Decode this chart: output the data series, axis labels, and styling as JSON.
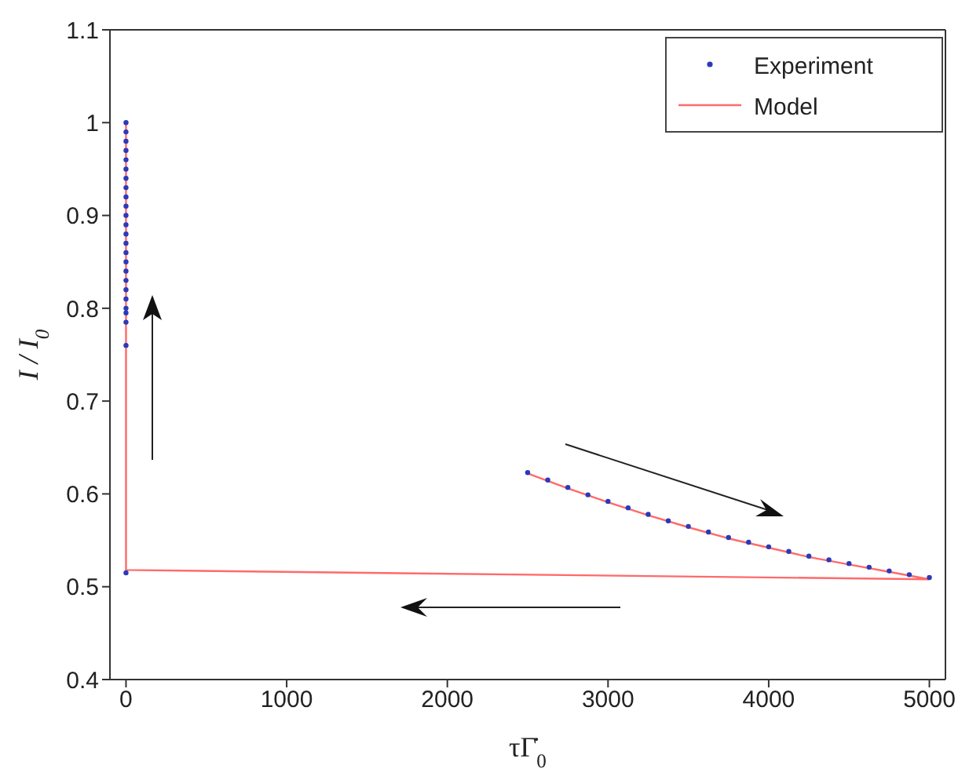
{
  "chart_data": {
    "type": "scatter",
    "xlabel": "τΓ̇$_{0}$",
    "ylabel": "I / I$_{0}$",
    "xlim": [
      -100,
      5100
    ],
    "xticks": [
      0,
      1000,
      2000,
      3000,
      4000,
      5000
    ],
    "ylim": [
      0.4,
      1.1
    ],
    "yticks": [
      0.4,
      0.5,
      0.6,
      0.7,
      0.8,
      0.9,
      1,
      1.1
    ],
    "grid": false,
    "legend": "top right",
    "marker": "circle",
    "series": [
      {
        "name": "Experiment",
        "color": "#2a3ab8",
        "x": [
          0,
          0,
          0,
          0,
          0,
          0,
          0,
          0,
          0,
          0,
          0,
          0,
          0,
          0,
          0,
          0,
          0,
          0,
          0,
          0,
          0,
          0,
          0,
          0,
          0,
          2500,
          2625,
          2750,
          2875,
          3000,
          3125,
          3250,
          3375,
          3500,
          3625,
          3750,
          3875,
          4000,
          4125,
          4250,
          4375,
          4500,
          4625,
          4750,
          4875,
          5000
        ],
        "values": [
          0.515,
          0.76,
          0.785,
          0.795,
          0.8,
          0.81,
          0.82,
          0.83,
          0.84,
          0.85,
          0.86,
          0.87,
          0.88,
          0.89,
          0.9,
          0.91,
          0.92,
          0.93,
          0.94,
          0.95,
          0.96,
          0.97,
          0.98,
          0.99,
          1,
          0.623,
          0.615,
          0.607,
          0.599,
          0.592,
          0.585,
          0.578,
          0.571,
          0.565,
          0.559,
          0.553,
          0.548,
          0.543,
          0.538,
          0.533,
          0.529,
          0.525,
          0.521,
          0.517,
          0.513,
          0.51
        ]
      },
      {
        "name": "Model",
        "type": "line",
        "color": "#ff6a6a",
        "line_style": "solid",
        "marker": "none",
        "x": [
          2500,
          2750,
          3000,
          3250,
          3500,
          3750,
          4000,
          4250,
          4500,
          4750,
          5000,
          0,
          0
        ],
        "values": [
          0.622,
          0.606,
          0.591,
          0.577,
          0.564,
          0.552,
          0.542,
          0.532,
          0.524,
          0.516,
          0.508,
          0.518,
          1
        ]
      }
    ]
  }
}
